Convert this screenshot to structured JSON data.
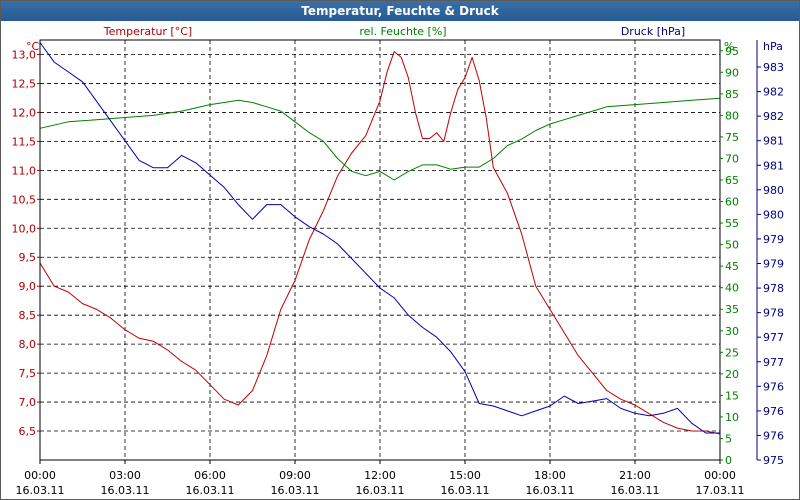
{
  "chart_data": {
    "type": "line",
    "title": "Temperatur, Feuchte & Druck",
    "x_tick_labels": [
      {
        "time": "00:00",
        "date": "16.03.11"
      },
      {
        "time": "03:00",
        "date": "16.03.11"
      },
      {
        "time": "06:00",
        "date": "16.03.11"
      },
      {
        "time": "09:00",
        "date": "16.03.11"
      },
      {
        "time": "12:00",
        "date": "16.03.11"
      },
      {
        "time": "15:00",
        "date": "16.03.11"
      },
      {
        "time": "18:00",
        "date": "16.03.11"
      },
      {
        "time": "21:00",
        "date": "16.03.11"
      },
      {
        "time": "00:00",
        "date": "17.03.11"
      }
    ],
    "xlim_hours": [
      0,
      24
    ],
    "axes": {
      "temperature": {
        "label": "Temperatur [°C]",
        "unit": "°C",
        "color": "#b00000",
        "ylim": [
          6.0,
          13.25
        ],
        "ticks": [
          "6,5",
          "7,0",
          "7,5",
          "8,0",
          "8,5",
          "9,0",
          "9,5",
          "10,0",
          "10,5",
          "11,0",
          "11,5",
          "12,0",
          "12,5",
          "13,0"
        ],
        "tick_values": [
          6.5,
          7.0,
          7.5,
          8.0,
          8.5,
          9.0,
          9.5,
          10.0,
          10.5,
          11.0,
          11.5,
          12.0,
          12.5,
          13.0
        ]
      },
      "humidity": {
        "label": "rel. Feuchte [%]",
        "unit": "%",
        "color": "#008000",
        "ylim": [
          0,
          97.5
        ],
        "ticks": [
          "0",
          "5",
          "10",
          "15",
          "20",
          "25",
          "30",
          "35",
          "40",
          "45",
          "50",
          "55",
          "60",
          "65",
          "70",
          "75",
          "80",
          "85",
          "90",
          "95"
        ],
        "tick_values": [
          0,
          5,
          10,
          15,
          20,
          25,
          30,
          35,
          40,
          45,
          50,
          55,
          60,
          65,
          70,
          75,
          80,
          85,
          90,
          95
        ]
      },
      "pressure": {
        "label": "Druck [hPa]",
        "unit": "hPa",
        "color": "#000080",
        "ylim": [
          975.0,
          983.55
        ],
        "ticks": [
          "975",
          "976",
          "976",
          "976",
          "977",
          "977",
          "978",
          "978",
          "979",
          "979",
          "980",
          "980",
          "981",
          "981",
          "982",
          "982",
          "983"
        ],
        "tick_values": [
          975.0,
          975.5,
          976.0,
          976.5,
          977.0,
          977.5,
          978.0,
          978.5,
          979.0,
          979.5,
          980.0,
          980.5,
          981.0,
          981.5,
          982.0,
          982.5,
          983.0
        ]
      }
    },
    "series": [
      {
        "name": "Temperatur",
        "axis": "temperature",
        "color": "#c00000",
        "x": [
          0,
          0.5,
          1,
          1.5,
          2,
          2.5,
          3,
          3.5,
          4,
          4.5,
          5,
          5.5,
          6,
          6.5,
          7,
          7.5,
          8,
          8.5,
          9,
          9.5,
          10,
          10.5,
          11,
          11.5,
          12,
          12.25,
          12.5,
          12.75,
          13,
          13.25,
          13.5,
          13.75,
          14,
          14.25,
          14.5,
          14.75,
          15,
          15.25,
          15.5,
          15.75,
          16,
          16.5,
          17,
          17.5,
          18,
          18.5,
          19,
          19.5,
          20,
          20.5,
          21,
          21.5,
          22,
          22.5,
          23,
          23.5,
          24
        ],
        "values": [
          9.4,
          9.0,
          8.9,
          8.7,
          8.6,
          8.45,
          8.25,
          8.1,
          8.05,
          7.9,
          7.7,
          7.55,
          7.3,
          7.05,
          6.95,
          7.2,
          7.8,
          8.6,
          9.1,
          9.8,
          10.3,
          10.9,
          11.3,
          11.6,
          12.2,
          12.7,
          13.05,
          12.95,
          12.6,
          12.0,
          11.55,
          11.55,
          11.65,
          11.5,
          12.0,
          12.4,
          12.6,
          12.95,
          12.55,
          11.9,
          11.05,
          10.6,
          9.9,
          9.0,
          8.6,
          8.2,
          7.8,
          7.5,
          7.2,
          7.05,
          6.95,
          6.8,
          6.65,
          6.55,
          6.5,
          6.5,
          6.45
        ]
      },
      {
        "name": "rel. Feuchte",
        "axis": "humidity",
        "color": "#008000",
        "x": [
          0,
          1,
          2,
          3,
          4,
          5,
          6,
          6.5,
          7,
          7.5,
          8,
          8.5,
          9,
          9.5,
          10,
          10.5,
          11,
          11.5,
          12,
          12.5,
          13,
          13.5,
          14,
          14.5,
          15,
          15.5,
          16,
          16.5,
          17,
          17.5,
          18,
          18.5,
          19,
          19.5,
          20,
          21,
          22,
          23,
          24
        ],
        "values": [
          77,
          78.5,
          79,
          79.5,
          80,
          81,
          82.5,
          83,
          83.5,
          83,
          82,
          81,
          78.5,
          76,
          74,
          70,
          67,
          66,
          67,
          65,
          67,
          68.5,
          68.5,
          67.5,
          68,
          68,
          70,
          73,
          74.5,
          76.5,
          78,
          79,
          80,
          81,
          82,
          82.5,
          83,
          83.5,
          84
        ]
      },
      {
        "name": "Druck",
        "axis": "pressure",
        "color": "#0000b0",
        "x": [
          0,
          0.5,
          1,
          1.5,
          2,
          2.5,
          3,
          3.5,
          4,
          4.5,
          5,
          5.5,
          6,
          6.5,
          7,
          7.5,
          8,
          8.5,
          9,
          9.5,
          10,
          10.5,
          11,
          11.5,
          12,
          12.5,
          13,
          13.5,
          14,
          14.5,
          15,
          15.5,
          16,
          16.5,
          17,
          17.5,
          18,
          18.5,
          19,
          19.5,
          20,
          20.5,
          21,
          21.5,
          22,
          22.5,
          23,
          23.5,
          24
        ],
        "values": [
          983.5,
          983.1,
          982.9,
          982.7,
          982.3,
          981.9,
          981.5,
          981.1,
          980.95,
          980.95,
          981.2,
          981.05,
          980.8,
          980.55,
          980.2,
          979.9,
          980.2,
          980.2,
          979.95,
          979.75,
          979.6,
          979.4,
          979.1,
          978.8,
          978.5,
          978.3,
          977.95,
          977.7,
          977.5,
          977.2,
          976.8,
          976.15,
          976.1,
          976.0,
          975.9,
          976.0,
          976.1,
          976.3,
          976.15,
          976.2,
          976.25,
          976.05,
          975.95,
          975.9,
          975.95,
          976.05,
          975.75,
          975.55,
          975.55
        ]
      }
    ]
  }
}
